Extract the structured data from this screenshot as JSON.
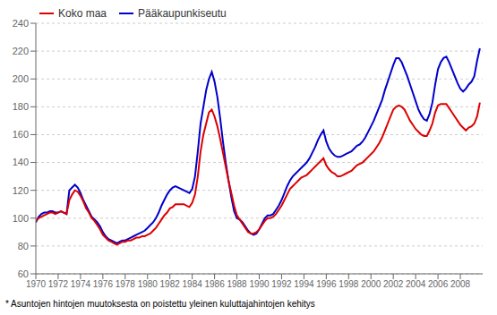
{
  "chart_data": {
    "type": "line",
    "footnote": "* Asuntojen hintojen muutoksesta on poistettu yleinen kuluttajahintojen kehitys",
    "x": [
      1970,
      1970.25,
      1970.5,
      1970.75,
      1971,
      1971.25,
      1971.5,
      1971.75,
      1972,
      1972.25,
      1972.5,
      1972.75,
      1973,
      1973.25,
      1973.5,
      1973.75,
      1974,
      1974.25,
      1974.5,
      1974.75,
      1975,
      1975.25,
      1975.5,
      1975.75,
      1976,
      1976.25,
      1976.5,
      1976.75,
      1977,
      1977.25,
      1977.5,
      1977.75,
      1978,
      1978.25,
      1978.5,
      1978.75,
      1979,
      1979.25,
      1979.5,
      1979.75,
      1980,
      1980.25,
      1980.5,
      1980.75,
      1981,
      1981.25,
      1981.5,
      1981.75,
      1982,
      1982.25,
      1982.5,
      1982.75,
      1983,
      1983.25,
      1983.5,
      1983.75,
      1984,
      1984.25,
      1984.5,
      1984.75,
      1985,
      1985.25,
      1985.5,
      1985.75,
      1986,
      1986.25,
      1986.5,
      1986.75,
      1987,
      1987.25,
      1987.5,
      1987.75,
      1988,
      1988.25,
      1988.5,
      1988.75,
      1989,
      1989.25,
      1989.5,
      1989.75,
      1990,
      1990.25,
      1990.5,
      1990.75,
      1991,
      1991.25,
      1991.5,
      1991.75,
      1992,
      1992.25,
      1992.5,
      1992.75,
      1993,
      1993.25,
      1993.5,
      1993.75,
      1994,
      1994.25,
      1994.5,
      1994.75,
      1995,
      1995.25,
      1995.5,
      1995.75,
      1996,
      1996.25,
      1996.5,
      1996.75,
      1997,
      1997.25,
      1997.5,
      1997.75,
      1998,
      1998.25,
      1998.5,
      1998.75,
      1999,
      1999.25,
      1999.5,
      1999.75,
      2000,
      2000.25,
      2000.5,
      2000.75,
      2001,
      2001.25,
      2001.5,
      2001.75,
      2002,
      2002.25,
      2002.5,
      2002.75,
      2003,
      2003.25,
      2003.5,
      2003.75,
      2004,
      2004.25,
      2004.5,
      2004.75,
      2005,
      2005.25,
      2005.5,
      2005.75,
      2006,
      2006.25,
      2006.5,
      2006.75,
      2007,
      2007.25,
      2007.5,
      2007.75,
      2008,
      2008.25,
      2008.5,
      2008.75,
      2009,
      2009.25,
      2009.5,
      2009.75
    ],
    "series": [
      {
        "name": "Koko maa",
        "color": "#dd0000",
        "values": [
          98,
          100,
          101,
          102,
          103,
          104,
          104,
          103,
          104,
          105,
          104,
          103,
          113,
          117,
          120,
          119,
          116,
          112,
          107,
          104,
          100,
          98,
          95,
          92,
          88,
          86,
          84,
          83,
          82,
          81,
          82,
          83,
          83,
          84,
          84,
          85,
          86,
          86,
          87,
          87,
          88,
          89,
          91,
          93,
          96,
          99,
          102,
          104,
          107,
          108,
          110,
          110,
          110,
          110,
          109,
          108,
          111,
          117,
          130,
          148,
          160,
          168,
          176,
          178,
          173,
          166,
          157,
          147,
          137,
          127,
          118,
          109,
          102,
          99,
          96,
          93,
          90,
          89,
          89,
          90,
          92,
          95,
          98,
          100,
          100,
          101,
          103,
          106,
          109,
          113,
          117,
          121,
          123,
          125,
          127,
          129,
          130,
          131,
          133,
          135,
          137,
          139,
          141,
          143,
          138,
          135,
          133,
          132,
          130,
          130,
          131,
          132,
          133,
          134,
          136,
          138,
          139,
          140,
          142,
          144,
          146,
          148,
          151,
          154,
          158,
          163,
          168,
          173,
          178,
          180,
          181,
          180,
          178,
          174,
          170,
          167,
          164,
          162,
          160,
          159,
          159,
          163,
          168,
          176,
          181,
          182,
          182,
          182,
          179,
          176,
          173,
          170,
          167,
          165,
          163,
          165,
          166,
          168,
          173,
          183
        ]
      },
      {
        "name": "Pääkaupunkiseutu",
        "color": "#0000cc",
        "values": [
          97,
          101,
          103,
          104,
          104,
          105,
          105,
          104,
          104,
          105,
          104,
          103,
          120,
          122,
          124,
          122,
          118,
          113,
          109,
          105,
          101,
          99,
          97,
          94,
          90,
          87,
          85,
          84,
          83,
          82,
          83,
          84,
          84,
          85,
          86,
          87,
          88,
          89,
          90,
          91,
          93,
          95,
          97,
          100,
          104,
          109,
          113,
          117,
          120,
          122,
          123,
          122,
          121,
          120,
          119,
          118,
          121,
          130,
          148,
          168,
          180,
          192,
          200,
          205,
          198,
          187,
          172,
          155,
          140,
          127,
          115,
          105,
          100,
          99,
          97,
          94,
          91,
          89,
          88,
          89,
          92,
          96,
          100,
          102,
          102,
          103,
          106,
          109,
          113,
          118,
          123,
          127,
          130,
          132,
          134,
          136,
          138,
          140,
          143,
          147,
          151,
          156,
          160,
          163,
          155,
          150,
          147,
          145,
          144,
          144,
          145,
          146,
          147,
          148,
          150,
          152,
          153,
          155,
          158,
          162,
          166,
          170,
          175,
          180,
          185,
          192,
          198,
          204,
          210,
          215,
          215,
          212,
          207,
          202,
          196,
          190,
          184,
          178,
          174,
          171,
          170,
          175,
          183,
          196,
          207,
          212,
          215,
          216,
          212,
          207,
          202,
          197,
          193,
          191,
          193,
          196,
          198,
          202,
          213,
          222
        ]
      }
    ],
    "xlim": [
      1970,
      2010
    ],
    "xticks": [
      1970,
      1972,
      1974,
      1976,
      1978,
      1980,
      1982,
      1984,
      1986,
      1988,
      1990,
      1992,
      1994,
      1996,
      1998,
      2000,
      2002,
      2004,
      2006,
      2008
    ],
    "ylim": [
      60,
      240
    ],
    "yticks": [
      60,
      80,
      100,
      120,
      140,
      160,
      180,
      200,
      220,
      240
    ],
    "grid": true,
    "legend": "upper left"
  }
}
